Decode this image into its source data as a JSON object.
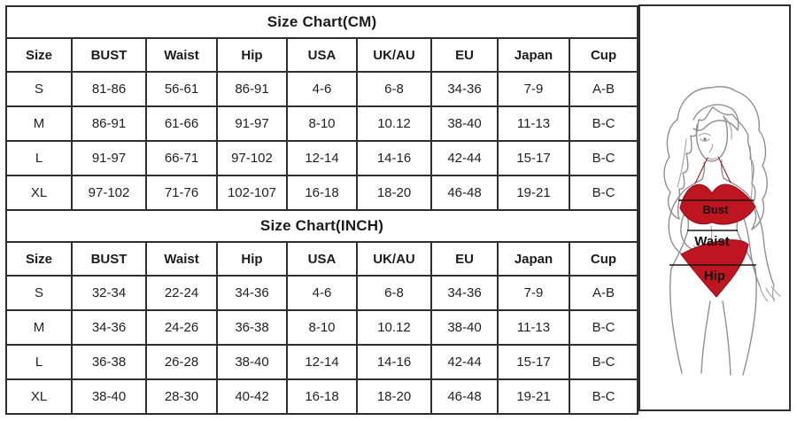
{
  "chart_data": [
    {
      "type": "table",
      "title": "Size Chart(CM)",
      "columns": [
        "Size",
        "BUST",
        "Waist",
        "Hip",
        "USA",
        "UK/AU",
        "EU",
        "Japan",
        "Cup"
      ],
      "rows": [
        [
          "S",
          "81-86",
          "56-61",
          "86-91",
          "4-6",
          "6-8",
          "34-36",
          "7-9",
          "A-B"
        ],
        [
          "M",
          "86-91",
          "61-66",
          "91-97",
          "8-10",
          "10.12",
          "38-40",
          "11-13",
          "B-C"
        ],
        [
          "L",
          "91-97",
          "66-71",
          "97-102",
          "12-14",
          "14-16",
          "42-44",
          "15-17",
          "B-C"
        ],
        [
          "XL",
          "97-102",
          "71-76",
          "102-107",
          "16-18",
          "18-20",
          "46-48",
          "19-21",
          "B-C"
        ]
      ]
    },
    {
      "type": "table",
      "title": "Size Chart(INCH)",
      "columns": [
        "Size",
        "BUST",
        "Waist",
        "Hip",
        "USA",
        "UK/AU",
        "EU",
        "Japan",
        "Cup"
      ],
      "rows": [
        [
          "S",
          "32-34",
          "22-24",
          "34-36",
          "4-6",
          "6-8",
          "34-36",
          "7-9",
          "A-B"
        ],
        [
          "M",
          "34-36",
          "24-26",
          "36-38",
          "8-10",
          "10.12",
          "38-40",
          "11-13",
          "B-C"
        ],
        [
          "L",
          "36-38",
          "26-28",
          "38-40",
          "12-14",
          "14-16",
          "42-44",
          "15-17",
          "B-C"
        ],
        [
          "XL",
          "38-40",
          "28-30",
          "40-42",
          "16-18",
          "18-20",
          "46-48",
          "19-21",
          "B-C"
        ]
      ]
    }
  ],
  "figure": {
    "labels": {
      "bust": "Bust",
      "waist": "Waist",
      "hip": "Hip"
    },
    "colors": {
      "bikini_red": "#bf1520",
      "outline_gray": "#8f8f8f",
      "measure_line": "#161616",
      "border": "#2e2e2e"
    }
  }
}
